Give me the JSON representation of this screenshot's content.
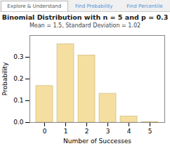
{
  "chart_data": {
    "type": "bar",
    "title": "Binomial Distribution with n = 5 and p = 0.3",
    "subtitle": "Mean = 1.5, Standard Deviation = 1.02",
    "annotations": [
      "Explore & Understand",
      "Find Probability",
      "Find Percentile"
    ],
    "xlabel": "Number of Successes",
    "ylabel": "Probability",
    "categories": [
      0,
      1,
      2,
      3,
      4,
      5
    ],
    "values": [
      0.16807,
      0.36015,
      0.3087,
      0.1323,
      0.02835,
      0.00243
    ],
    "color": "#f5dfa0",
    "ylim": [
      0,
      0.4
    ],
    "yticks": [
      {
        "value": 0.0,
        "label": "0.0"
      },
      {
        "value": 0.1,
        "label": "0.1"
      },
      {
        "value": 0.2,
        "label": "0.2"
      },
      {
        "value": 0.3,
        "label": "0.3"
      }
    ],
    "grid": false
  }
}
